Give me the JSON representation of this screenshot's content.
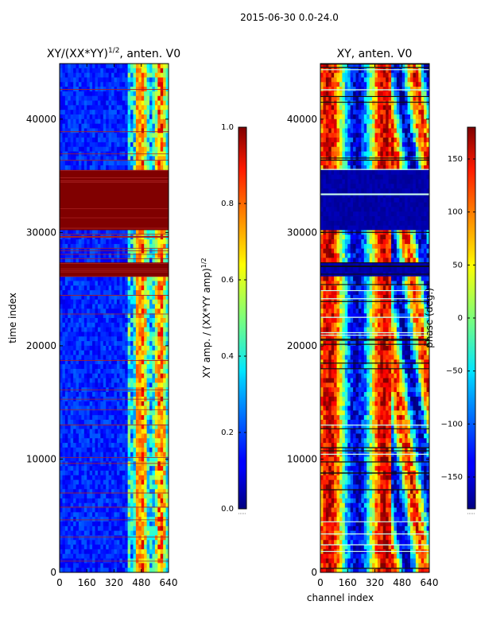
{
  "figure": {
    "suptitle": "2015-06-30 0.0-24.0"
  },
  "chart_data": [
    {
      "type": "heatmap",
      "title": "XY/(XX*YY)",
      "title_exponent": "1/2",
      "title_suffix": ", anten. V0",
      "xlabel": "",
      "ylabel": "time index",
      "xlim": [
        0,
        640
      ],
      "ylim": [
        0,
        44900
      ],
      "xticks": [
        0,
        160,
        320,
        480,
        640
      ],
      "xtick_labels": [
        "0",
        "160",
        "320",
        "480",
        "640"
      ],
      "yticks": [
        0,
        10000,
        20000,
        30000,
        40000
      ],
      "ytick_labels": [
        "0",
        "10000",
        "20000",
        "30000",
        "40000"
      ],
      "colormap": "jet",
      "colorbar": {
        "label": "XY amp. / (XX*YY amp)",
        "label_exponent": "1/2",
        "min": 0.0,
        "max": 1.0,
        "ticks": [
          0.0,
          0.2,
          0.4,
          0.6,
          0.8,
          1.0
        ],
        "tick_labels": [
          "0.0",
          "0.2",
          "0.4",
          "0.6",
          "0.8",
          "1.0"
        ]
      },
      "saturated_time_blocks": [
        [
          26000,
          27200
        ],
        [
          30200,
          35400
        ]
      ],
      "description_bands": "low amplitude (blue) for channels 0-400, structured higher amplitude for channels 400-640"
    },
    {
      "type": "heatmap",
      "title": "XY, anten. V0",
      "xlabel": "channel index",
      "ylabel": "",
      "xlim": [
        0,
        640
      ],
      "ylim": [
        0,
        44900
      ],
      "xticks": [
        0,
        160,
        320,
        480,
        640
      ],
      "xtick_labels": [
        "0",
        "160",
        "320",
        "480",
        "640"
      ],
      "yticks": [
        0,
        10000,
        20000,
        30000,
        40000
      ],
      "ytick_labels": [
        "0",
        "10000",
        "20000",
        "30000",
        "40000"
      ],
      "colormap": "jet",
      "colorbar": {
        "label": "phase (deg.)",
        "min": -180,
        "max": 180,
        "ticks": [
          -150,
          -100,
          -50,
          0,
          50,
          100,
          150
        ],
        "tick_labels": [
          "−150",
          "−100",
          "−50",
          "0",
          "50",
          "100",
          "150"
        ]
      },
      "flagged_time_blocks": [
        [
          26000,
          27200
        ],
        [
          30200,
          35400
        ]
      ]
    }
  ]
}
